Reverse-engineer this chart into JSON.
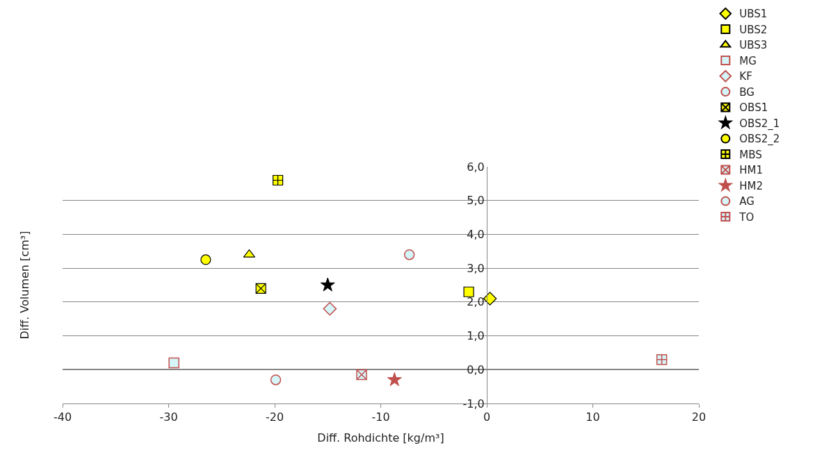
{
  "chart_data": {
    "type": "scatter",
    "xlabel": "Diff. Rohdichte [kg/m³]",
    "ylabel": "Diff. Volumen [cm³]",
    "xlim": [
      -40,
      20
    ],
    "xticks": [
      -40,
      -30,
      -20,
      -10,
      0,
      10,
      20
    ],
    "ylim": [
      -1,
      6
    ],
    "yticks": [
      {
        "value": -1,
        "label": "-1,0"
      },
      {
        "value": 0,
        "label": "0,0"
      },
      {
        "value": 1,
        "label": "1,0"
      },
      {
        "value": 2,
        "label": "2,0"
      },
      {
        "value": 3,
        "label": "3,0"
      },
      {
        "value": 4,
        "label": "4,0"
      },
      {
        "value": 5,
        "label": "5,0"
      },
      {
        "value": 6,
        "label": "6,0"
      }
    ],
    "grid": "y",
    "legend": "right",
    "series": [
      {
        "name": "UBS1",
        "color": "#ffff00",
        "marker": "diamond",
        "x": [
          0.3
        ],
        "values": [
          2.1
        ]
      },
      {
        "name": "UBS2",
        "color": "#ffff00",
        "marker": "square",
        "x": [
          -1.7
        ],
        "values": [
          2.3
        ]
      },
      {
        "name": "UBS3",
        "color": "#ffff00",
        "marker": "triangle",
        "x": [
          -22.4
        ],
        "values": [
          3.4
        ]
      },
      {
        "name": "MG",
        "color": "#c0504d",
        "marker": "square",
        "x": [
          -29.5
        ],
        "values": [
          0.2
        ]
      },
      {
        "name": "KF",
        "color": "#c0504d",
        "marker": "diamond",
        "x": [
          -14.8
        ],
        "values": [
          1.8
        ]
      },
      {
        "name": "BG",
        "color": "#c0504d",
        "marker": "circle",
        "x": [
          -7.3
        ],
        "values": [
          3.4
        ]
      },
      {
        "name": "OBS1",
        "color": "#ffff00",
        "marker": "x",
        "x": [
          -21.3
        ],
        "values": [
          2.4
        ]
      },
      {
        "name": "OBS2_1",
        "color": "#000000",
        "marker": "star",
        "x": [
          -15.0
        ],
        "values": [
          2.5
        ]
      },
      {
        "name": "OBS2_2",
        "color": "#ffff00",
        "marker": "circle",
        "x": [
          -26.5
        ],
        "values": [
          3.25
        ]
      },
      {
        "name": "MBS",
        "color": "#ffff00",
        "marker": "cross",
        "x": [
          -19.7
        ],
        "values": [
          5.6
        ]
      },
      {
        "name": "HM1",
        "color": "#c0504d",
        "marker": "x",
        "x": [
          -11.8
        ],
        "values": [
          -0.15
        ]
      },
      {
        "name": "HM2",
        "color": "#c0504d",
        "marker": "star",
        "x": [
          -8.7
        ],
        "values": [
          -0.3
        ]
      },
      {
        "name": "AG",
        "color": "#c0504d",
        "marker": "circle",
        "x": [
          -19.9
        ],
        "values": [
          -0.3
        ]
      },
      {
        "name": "TO",
        "color": "#c0504d",
        "marker": "cross",
        "x": [
          16.5
        ],
        "values": [
          0.3
        ]
      }
    ]
  }
}
